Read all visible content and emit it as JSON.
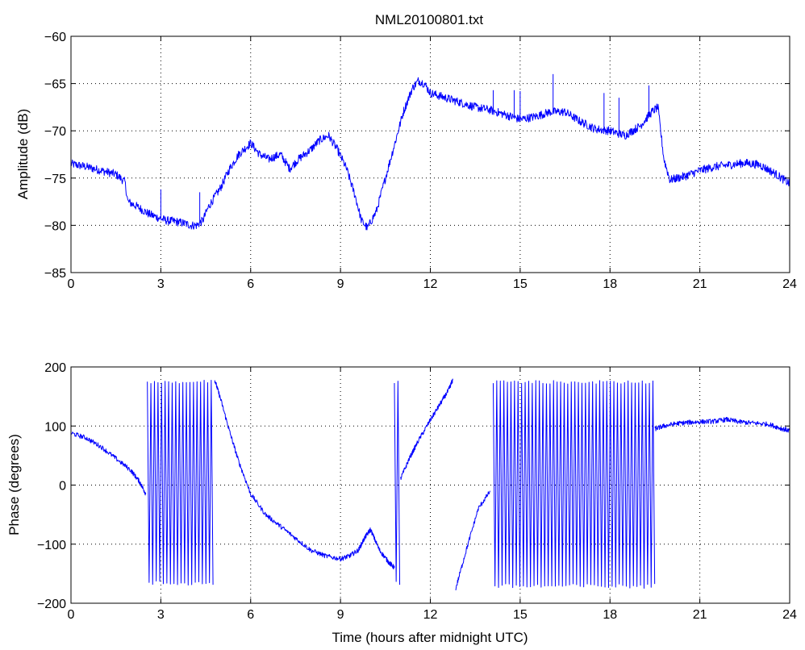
{
  "chart_data": [
    {
      "type": "line",
      "title": "NML20100801.txt",
      "xlabel": "",
      "ylabel": "Amplitude (dB)",
      "xlim": [
        0,
        24
      ],
      "ylim": [
        -85,
        -60
      ],
      "xticks": [
        "0",
        "3",
        "6",
        "9",
        "12",
        "15",
        "18",
        "21",
        "24"
      ],
      "yticks": [
        "−60",
        "−65",
        "−70",
        "−75",
        "−80",
        "−85"
      ],
      "grid": true,
      "color": "#0000ff",
      "x": [
        0,
        0.5,
        1,
        1.5,
        1.8,
        1.9,
        2.2,
        2.6,
        3.0,
        3.2,
        3.5,
        3.8,
        4.0,
        4.2,
        4.4,
        4.6,
        5.0,
        5.3,
        5.6,
        6.0,
        6.3,
        6.6,
        7.0,
        7.3,
        7.6,
        8.0,
        8.3,
        8.6,
        8.9,
        9.2,
        9.5,
        9.7,
        9.9,
        10.2,
        10.5,
        10.8,
        11.1,
        11.4,
        11.6,
        11.8,
        12.0,
        12.5,
        13.0,
        13.5,
        14.0,
        14.5,
        15.0,
        15.5,
        16.0,
        16.5,
        17.0,
        17.5,
        18.0,
        18.5,
        19.0,
        19.4,
        19.6,
        19.8,
        20.0,
        20.5,
        21.0,
        21.5,
        22.0,
        22.5,
        23.0,
        23.5,
        24.0
      ],
      "values": [
        -73.5,
        -73.8,
        -74.2,
        -74.6,
        -75.4,
        -77.5,
        -78.0,
        -78.8,
        -79.3,
        -79.5,
        -79.6,
        -79.8,
        -80.0,
        -80.0,
        -79.5,
        -78.0,
        -76.0,
        -74.0,
        -72.5,
        -71.3,
        -72.5,
        -73.0,
        -72.5,
        -74.0,
        -73.0,
        -72.0,
        -71.0,
        -70.5,
        -72.0,
        -74.0,
        -77.0,
        -79.5,
        -80.3,
        -78.5,
        -75.0,
        -71.5,
        -68.0,
        -65.5,
        -64.7,
        -65.0,
        -66.0,
        -66.5,
        -67.0,
        -67.5,
        -67.8,
        -68.3,
        -68.8,
        -68.5,
        -68.0,
        -68.0,
        -69.0,
        -69.8,
        -70.0,
        -70.5,
        -69.5,
        -68.0,
        -67.5,
        -73.0,
        -75.2,
        -74.8,
        -74.2,
        -73.8,
        -73.6,
        -73.4,
        -73.6,
        -74.5,
        -75.6
      ],
      "spikes": [
        [
          3.0,
          -76.2
        ],
        [
          4.3,
          -76.5
        ],
        [
          12.9,
          -67.0
        ],
        [
          14.1,
          -65.7
        ],
        [
          14.8,
          -65.7
        ],
        [
          15.0,
          -65.8
        ],
        [
          16.1,
          -64.0
        ],
        [
          17.8,
          -66.0
        ],
        [
          18.3,
          -66.5
        ],
        [
          19.3,
          -65.2
        ]
      ]
    },
    {
      "type": "line",
      "title": "",
      "xlabel": "Time (hours after midnight UTC)",
      "ylabel": "Phase (degrees)",
      "xlim": [
        0,
        24
      ],
      "ylim": [
        -200,
        200
      ],
      "xticks": [
        "0",
        "3",
        "6",
        "9",
        "12",
        "15",
        "18",
        "21",
        "24"
      ],
      "yticks": [
        "200",
        "100",
        "0",
        "−100",
        "−200"
      ],
      "grid": true,
      "color": "#0000ff",
      "smooth_segments": [
        {
          "x": [
            0,
            0.5,
            1.0,
            1.5,
            2.0,
            2.3,
            2.5
          ],
          "values": [
            88,
            80,
            65,
            45,
            25,
            5,
            -15
          ]
        },
        {
          "x": [
            4.8,
            5.0,
            5.3,
            5.6,
            6.0,
            6.5,
            7.0,
            7.5,
            8.0,
            8.5,
            9.0,
            9.3,
            9.6,
            9.8,
            10.0,
            10.3,
            10.6,
            10.8
          ],
          "values": [
            178,
            145,
            90,
            40,
            -15,
            -50,
            -70,
            -90,
            -110,
            -120,
            -125,
            -120,
            -110,
            -90,
            -75,
            -110,
            -130,
            -140
          ]
        },
        {
          "x": [
            11.0,
            11.3,
            11.6,
            12.0,
            12.3,
            12.6,
            12.75
          ],
          "values": [
            10,
            45,
            75,
            110,
            135,
            160,
            178
          ]
        },
        {
          "x": [
            12.85,
            13.2,
            13.6,
            14.0
          ],
          "values": [
            -175,
            -110,
            -40,
            -10
          ]
        },
        {
          "x": [
            19.5,
            19.8,
            20.2,
            20.6,
            21.0,
            21.5,
            21.9,
            22.3,
            22.8,
            23.3,
            23.7,
            24.0
          ],
          "values": [
            95,
            100,
            104,
            106,
            107,
            108,
            111,
            107,
            105,
            103,
            96,
            92
          ]
        }
      ],
      "oscillation_ranges": [
        {
          "x_start": 2.55,
          "x_end": 4.8,
          "ymin": -170,
          "ymax": 178
        },
        {
          "x_start": 10.8,
          "x_end": 11.0,
          "ymin": -170,
          "ymax": 178
        },
        {
          "x_start": 14.1,
          "x_end": 19.5,
          "ymin": -175,
          "ymax": 177
        }
      ]
    }
  ]
}
